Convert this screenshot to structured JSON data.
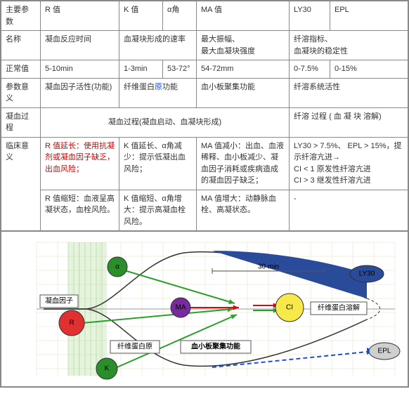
{
  "headers": {
    "main": "主要参数",
    "r": "R 值",
    "k": "K 值",
    "alpha": "α角",
    "ma": "MA 值",
    "ly30": "LY30",
    "epl": "EPL"
  },
  "rows": {
    "name": {
      "label": "名称",
      "r": "凝血反应时间",
      "k": "血凝块形成的速率",
      "ma": "最大振幅、\n最大血凝块强度",
      "ly": "纤溶指标、\n血凝块的稳定性"
    },
    "normal": {
      "label": "正常值",
      "r": "5-10min",
      "k": "1-3min",
      "alpha": "53-72°",
      "ma": "54-72mm",
      "ly30": "0-7.5%",
      "epl": "0-15%"
    },
    "meaning": {
      "label": "参数意义",
      "r": "凝血因子活性(功能)",
      "k_pre": "纤维蛋白",
      "k_hl": "原",
      "k_post": "功能",
      "ma": "血小板聚集功能",
      "ly": "纤溶系统活性"
    },
    "process": {
      "label": "凝血过程",
      "clot": "凝血过程(凝血启动、血凝块形成)",
      "lysis": "纤溶 过程 ( 血 凝 块 溶解)"
    },
    "clinical": {
      "label": "临床意义",
      "r1": "R 值延长：使用抗凝剂或凝血因子缺乏，出血风险；",
      "k1": "K 值延长、α角减少：提示低凝出血风险；",
      "ma1": "MA 值减小：出血、血液稀释、血小板减少、凝血因子消耗或疾病造成的凝血因子缺乏；",
      "ly1": "LY30 > 7.5%、 EPL > 15%，提示纤溶亢进→\nCI < 1 原发性纤溶亢进\nCI > 3 继发性纤溶亢进",
      "r2": "R 值缩短：血液呈高凝状态，血栓风险。",
      "k2": "K 值缩短、α角增大：提示高凝血栓风险。",
      "ma2": "MA 值增大：动静脉血栓、高凝状态。",
      "ly2": "-"
    }
  },
  "diagram": {
    "colors": {
      "grid": "#e0e0c0",
      "gridGreen": "#9ad07a",
      "curve": "#333",
      "r": "#e03030",
      "k": "#2a8f2a",
      "alpha": "#2a8f2a",
      "ma": "#7a2aa0",
      "ci": "#f7e94a",
      "ly30": "#2a4a9a",
      "epl": "#cfcfcf",
      "arrowGreen": "#2aa02a",
      "arrowRed": "#d01010",
      "arrowBlue": "#1a4fd6"
    },
    "labels": {
      "coag": "凝血因子",
      "fibrin": "纤维蛋白原",
      "platelet": "血小板聚集功能",
      "lysis": "纤维蛋白溶解",
      "r": "R",
      "k": "K",
      "alpha": "α",
      "ma": "MA",
      "ci": "CI",
      "ly30": "LY30",
      "epl": "EPL",
      "time": "30 min"
    }
  }
}
